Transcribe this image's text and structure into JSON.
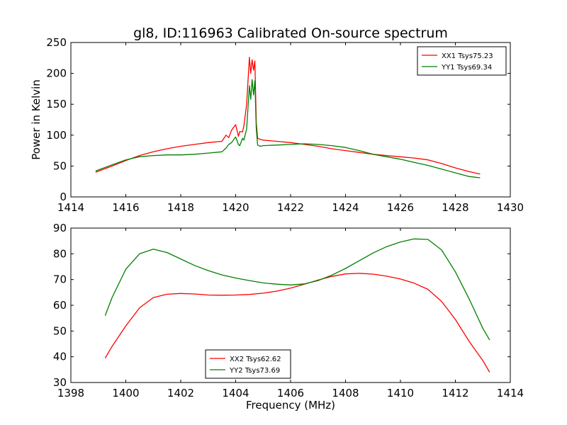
{
  "figure": {
    "title": "gl8, ID:116963 Calibrated On-source spectrum"
  },
  "chart_data": [
    {
      "type": "line",
      "title": "gl8, ID:116963 Calibrated On-source spectrum",
      "xlabel": "",
      "ylabel": "Power in Kelvin",
      "xlim": [
        1414,
        1430
      ],
      "ylim": [
        0,
        250
      ],
      "xticks": [
        "1414",
        "1416",
        "1418",
        "1420",
        "1422",
        "1424",
        "1426",
        "1428",
        "1430"
      ],
      "yticks": [
        "0",
        "50",
        "100",
        "150",
        "200",
        "250"
      ],
      "grid": false,
      "legend_position": "top-right",
      "series": [
        {
          "name": "XX1 Tsys75.23",
          "color": "#ff0000",
          "x": [
            14.9,
            15.5,
            16.0,
            16.5,
            17.0,
            17.5,
            18.0,
            18.5,
            19.0,
            19.5,
            19.65,
            19.75,
            19.85,
            20.0,
            20.1,
            20.15,
            20.25,
            20.3,
            20.4,
            20.5,
            20.55,
            20.6,
            20.65,
            20.7,
            20.75,
            20.8,
            20.9,
            21.0,
            21.5,
            22.0,
            22.5,
            23.0,
            23.5,
            24.0,
            24.5,
            25.0,
            25.5,
            26.0,
            26.5,
            27.0,
            27.5,
            28.0,
            28.5,
            28.9
          ],
          "y": [
            40,
            50,
            59,
            67,
            73,
            78,
            82,
            85,
            88,
            90,
            100,
            96,
            108,
            117,
            98,
            106,
            105,
            115,
            150,
            226,
            200,
            222,
            205,
            220,
            120,
            95,
            93,
            92,
            90,
            88,
            85,
            82,
            78,
            75,
            72,
            69,
            67,
            65,
            63,
            60,
            54,
            47,
            41,
            37
          ]
        },
        {
          "name": "YY1 Tsys69.34",
          "color": "#008000",
          "x": [
            14.9,
            15.5,
            16.0,
            16.5,
            17.0,
            17.5,
            18.0,
            18.5,
            19.0,
            19.5,
            19.65,
            19.75,
            19.85,
            20.0,
            20.1,
            20.15,
            20.25,
            20.3,
            20.4,
            20.5,
            20.55,
            20.6,
            20.65,
            20.7,
            20.75,
            20.8,
            20.9,
            21.0,
            21.5,
            22.0,
            22.5,
            23.0,
            23.5,
            24.0,
            24.5,
            25.0,
            25.5,
            26.0,
            26.5,
            27.0,
            27.5,
            28.0,
            28.5,
            28.9
          ],
          "y": [
            42,
            52,
            60,
            65,
            67,
            68,
            68,
            69,
            71,
            73,
            79,
            85,
            88,
            97,
            85,
            83,
            95,
            92,
            110,
            180,
            158,
            190,
            165,
            188,
            110,
            84,
            82,
            83,
            84,
            85,
            86,
            85,
            83,
            80,
            75,
            69,
            65,
            61,
            56,
            51,
            45,
            39,
            33,
            31
          ]
        }
      ]
    },
    {
      "type": "line",
      "title": "",
      "xlabel": "Frequency (MHz)",
      "ylabel": "",
      "xlim": [
        1398,
        1414
      ],
      "ylim": [
        30,
        90
      ],
      "xticks": [
        "1398",
        "1400",
        "1402",
        "1404",
        "1406",
        "1408",
        "1410",
        "1412",
        "1414"
      ],
      "yticks": [
        "30",
        "40",
        "50",
        "60",
        "70",
        "80",
        "90"
      ],
      "grid": false,
      "legend_position": "bottom-center",
      "series": [
        {
          "name": "XX2 Tsys62.62",
          "color": "#ff0000",
          "x": [
            1399.25,
            1399.5,
            1400.0,
            1400.5,
            1401.0,
            1401.5,
            1402.0,
            1402.5,
            1403.0,
            1403.5,
            1404.0,
            1404.5,
            1405.0,
            1405.5,
            1406.0,
            1406.5,
            1407.0,
            1407.5,
            1408.0,
            1408.5,
            1409.0,
            1409.5,
            1410.0,
            1410.5,
            1411.0,
            1411.5,
            1412.0,
            1412.5,
            1413.0,
            1413.25
          ],
          "y": [
            39.5,
            44,
            52,
            59,
            63,
            64.3,
            64.6,
            64.4,
            64.0,
            63.9,
            64.0,
            64.2,
            64.7,
            65.5,
            66.7,
            68.2,
            69.8,
            71.2,
            72.2,
            72.4,
            72.1,
            71.3,
            70.2,
            68.6,
            66.2,
            61.5,
            54.5,
            46,
            38.5,
            34
          ]
        },
        {
          "name": "YY2 Tsys73.69",
          "color": "#008000",
          "x": [
            1399.25,
            1399.5,
            1400.0,
            1400.5,
            1401.0,
            1401.5,
            1402.0,
            1402.5,
            1403.0,
            1403.5,
            1404.0,
            1404.5,
            1405.0,
            1405.5,
            1406.0,
            1406.5,
            1407.0,
            1407.5,
            1408.0,
            1408.5,
            1409.0,
            1409.5,
            1410.0,
            1410.5,
            1411.0,
            1411.5,
            1412.0,
            1412.5,
            1413.0,
            1413.25
          ],
          "y": [
            56,
            63,
            74,
            80,
            81.8,
            80.5,
            78,
            75.5,
            73.5,
            71.8,
            70.6,
            69.6,
            68.7,
            68.2,
            67.9,
            68.3,
            69.6,
            71.7,
            74.3,
            77.3,
            80.3,
            82.8,
            84.6,
            85.8,
            85.6,
            81.5,
            73,
            62.5,
            51,
            46.5
          ]
        }
      ]
    }
  ]
}
